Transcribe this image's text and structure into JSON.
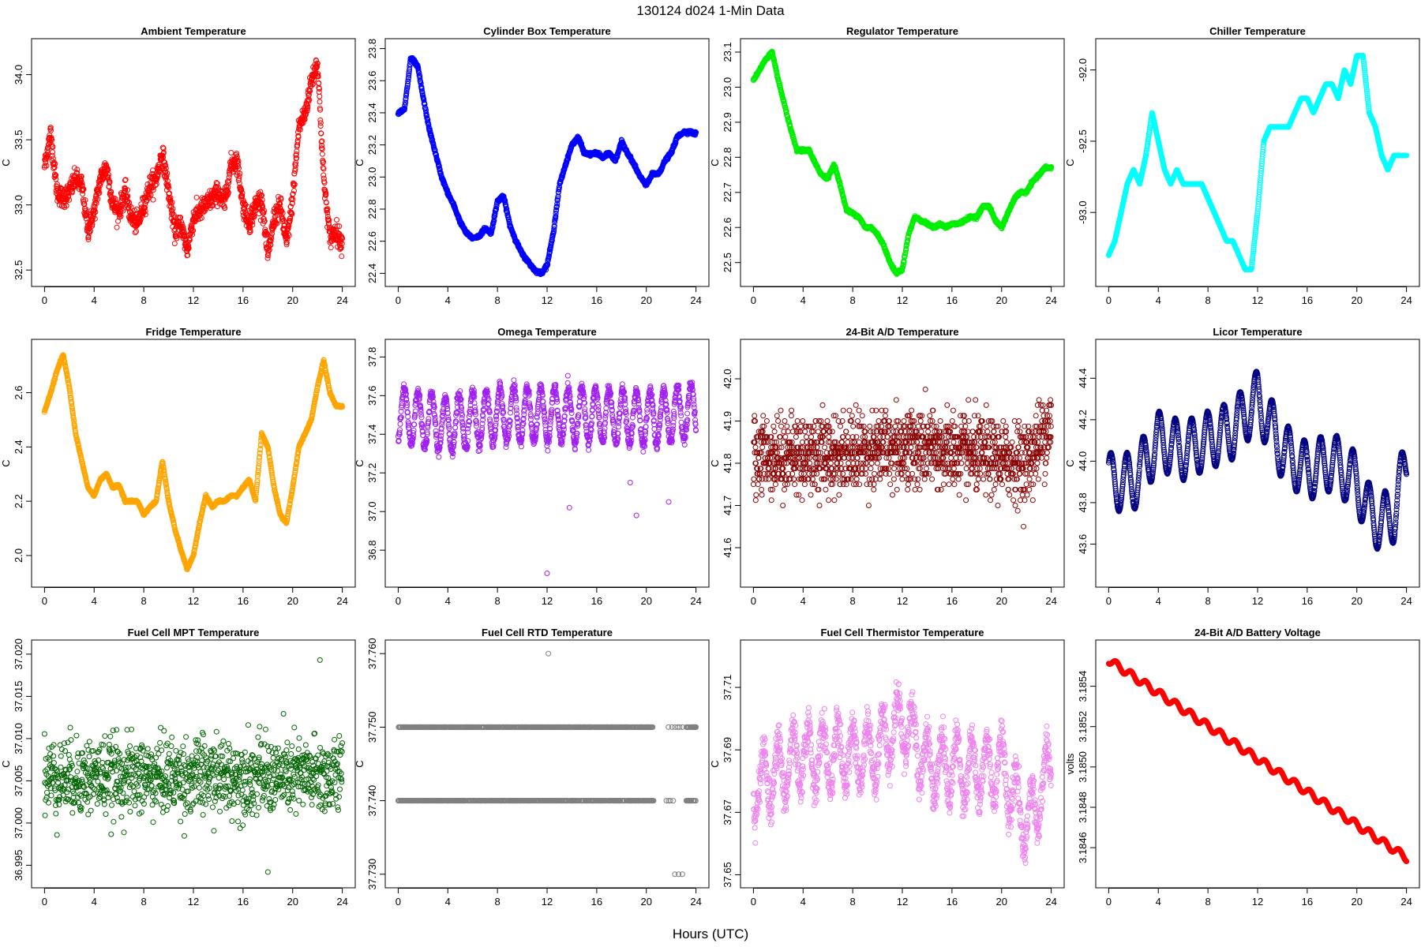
{
  "page_title": "130124    d024    1-Min Data",
  "x_axis_title": "Hours (UTC)",
  "chart_data": [
    {
      "type": "scatter",
      "title": "Ambient Temperature",
      "ylabel": "C",
      "color": "#ff0000",
      "xlim": [
        0,
        24
      ],
      "ylim": [
        32.45,
        34.2
      ],
      "xticks": [
        "0",
        "4",
        "8",
        "12",
        "16",
        "20",
        "24"
      ],
      "yticks": [
        "32.5",
        "33.0",
        "33.5",
        "34.0"
      ],
      "ytick_values": [
        32.5,
        33.0,
        33.5,
        34.0
      ],
      "noise": 0.08,
      "x": [
        0,
        0.5,
        1,
        1.5,
        2,
        2.5,
        3,
        3.5,
        4,
        4.5,
        5,
        5.5,
        6,
        6.5,
        7,
        7.5,
        8,
        8.5,
        9,
        9.5,
        10,
        10.5,
        11,
        11.5,
        12,
        12.5,
        13,
        13.5,
        14,
        14.5,
        15,
        15.5,
        16,
        16.5,
        17,
        17.5,
        18,
        18.5,
        19,
        19.5,
        20,
        20.5,
        21,
        21.5,
        22,
        22.5,
        23,
        23.5,
        24
      ],
      "y": [
        33.3,
        33.55,
        33.1,
        33.05,
        33.1,
        33.2,
        33.15,
        32.8,
        32.95,
        33.2,
        33.3,
        33.0,
        32.95,
        33.1,
        32.9,
        32.85,
        33.0,
        33.15,
        33.2,
        33.4,
        33.1,
        32.8,
        32.85,
        32.65,
        32.9,
        32.95,
        33.0,
        33.05,
        33.1,
        33.0,
        33.3,
        33.35,
        33.0,
        32.85,
        33.0,
        33.05,
        32.6,
        32.9,
        33.0,
        32.7,
        33.05,
        33.6,
        33.7,
        33.95,
        34.1,
        33.2,
        32.75,
        32.8,
        32.7
      ]
    },
    {
      "type": "scatter",
      "title": "Cylinder Box Temperature",
      "ylabel": "C",
      "color": "#0000ff",
      "xlim": [
        0,
        24
      ],
      "ylim": [
        22.38,
        23.8
      ],
      "xticks": [
        "0",
        "4",
        "8",
        "12",
        "16",
        "20",
        "24"
      ],
      "yticks": [
        "22.4",
        "22.6",
        "22.8",
        "23.0",
        "23.2",
        "23.4",
        "23.6",
        "23.8"
      ],
      "ytick_values": [
        22.4,
        22.6,
        22.8,
        23.0,
        23.2,
        23.4,
        23.6,
        23.8
      ],
      "noise": 0.01,
      "x": [
        0,
        0.5,
        0.8,
        1,
        1.3,
        1.6,
        2,
        2.5,
        3,
        3.5,
        4,
        4.5,
        5,
        5.5,
        6,
        6.5,
        7,
        7.5,
        8,
        8.5,
        9,
        9.5,
        10,
        10.5,
        11,
        11.5,
        12,
        12.5,
        13,
        13.5,
        14,
        14.5,
        15,
        15.5,
        16,
        16.5,
        17,
        17.5,
        18,
        18.5,
        19,
        19.5,
        20,
        20.5,
        21,
        21.5,
        22,
        22.5,
        23,
        23.5,
        24
      ],
      "y": [
        23.4,
        23.42,
        23.6,
        23.74,
        23.72,
        23.68,
        23.5,
        23.3,
        23.15,
        23.0,
        22.9,
        22.82,
        22.72,
        22.65,
        22.62,
        22.63,
        22.68,
        22.65,
        22.85,
        22.88,
        22.7,
        22.6,
        22.52,
        22.47,
        22.42,
        22.4,
        22.45,
        22.65,
        22.95,
        23.08,
        23.2,
        23.25,
        23.15,
        23.14,
        23.15,
        23.12,
        23.15,
        23.1,
        23.22,
        23.15,
        23.08,
        23.0,
        22.95,
        23.02,
        23.02,
        23.1,
        23.15,
        23.25,
        23.28,
        23.28,
        23.27
      ]
    },
    {
      "type": "scatter",
      "title": "Regulator Temperature",
      "ylabel": "C",
      "color": "#00ee00",
      "xlim": [
        0,
        24
      ],
      "ylim": [
        22.46,
        23.11
      ],
      "xticks": [
        "0",
        "4",
        "8",
        "12",
        "16",
        "20",
        "24"
      ],
      "yticks": [
        "22.5",
        "22.6",
        "22.7",
        "22.8",
        "22.9",
        "23.0",
        "23.1"
      ],
      "ytick_values": [
        22.5,
        22.6,
        22.7,
        22.8,
        22.9,
        23.0,
        23.1
      ],
      "noise": 0.004,
      "x": [
        0,
        0.5,
        1,
        1.5,
        2,
        2.5,
        3,
        3.5,
        4,
        4.5,
        5,
        5.5,
        6,
        6.5,
        7,
        7.5,
        8,
        8.5,
        9,
        9.5,
        10,
        10.5,
        11,
        11.5,
        12,
        12.5,
        13,
        13.5,
        14,
        14.5,
        15,
        15.5,
        16,
        16.5,
        17,
        17.5,
        18,
        18.5,
        19,
        19.5,
        20,
        20.5,
        21,
        21.5,
        22,
        22.5,
        23,
        23.5,
        24
      ],
      "y": [
        23.02,
        23.05,
        23.08,
        23.1,
        23.02,
        22.95,
        22.88,
        22.82,
        22.82,
        22.82,
        22.78,
        22.75,
        22.74,
        22.78,
        22.72,
        22.65,
        22.64,
        22.63,
        22.6,
        22.6,
        22.58,
        22.55,
        22.5,
        22.47,
        22.48,
        22.58,
        22.63,
        22.62,
        22.61,
        22.6,
        22.61,
        22.6,
        22.61,
        22.61,
        22.62,
        22.63,
        22.63,
        22.66,
        22.66,
        22.62,
        22.6,
        22.64,
        22.68,
        22.7,
        22.7,
        22.73,
        22.75,
        22.77,
        22.77
      ]
    },
    {
      "type": "scatter",
      "title": "Chiller Temperature",
      "ylabel": "C",
      "color": "#00ffff",
      "xlim": [
        0,
        24
      ],
      "ylim": [
        -93.45,
        -91.85
      ],
      "xticks": [
        "0",
        "4",
        "8",
        "12",
        "16",
        "20",
        "24"
      ],
      "yticks": [
        "-93.0",
        "-92.5",
        "-92.0"
      ],
      "ytick_values": [
        -93.0,
        -92.5,
        -92.0
      ],
      "noise": 0,
      "x": [
        0,
        0.5,
        1,
        1.5,
        2,
        2.5,
        3,
        3.5,
        4,
        4.5,
        5,
        5.5,
        6,
        6.5,
        7,
        7.5,
        8,
        8.5,
        9,
        9.5,
        10,
        10.5,
        11,
        11.5,
        12,
        12.5,
        13,
        13.5,
        14,
        14.5,
        15,
        15.5,
        16,
        16.5,
        17,
        17.5,
        18,
        18.5,
        19,
        19.5,
        20,
        20.5,
        21,
        21.5,
        22,
        22.5,
        23,
        23.5,
        24
      ],
      "y": [
        -93.3,
        -93.2,
        -93.0,
        -92.8,
        -92.7,
        -92.8,
        -92.6,
        -92.3,
        -92.5,
        -92.7,
        -92.8,
        -92.7,
        -92.8,
        -92.8,
        -92.8,
        -92.8,
        -92.9,
        -93.0,
        -93.1,
        -93.2,
        -93.2,
        -93.3,
        -93.4,
        -93.4,
        -93.0,
        -92.5,
        -92.4,
        -92.4,
        -92.4,
        -92.4,
        -92.3,
        -92.2,
        -92.2,
        -92.3,
        -92.2,
        -92.1,
        -92.1,
        -92.2,
        -92.0,
        -92.1,
        -91.9,
        -91.9,
        -92.3,
        -92.4,
        -92.6,
        -92.7,
        -92.6,
        -92.6,
        -92.6
      ]
    },
    {
      "type": "scatter",
      "title": "Fridge Temperature",
      "ylabel": "C",
      "color": "#ffa500",
      "xlim": [
        0,
        24
      ],
      "ylim": [
        1.92,
        2.76
      ],
      "xticks": [
        "0",
        "4",
        "8",
        "12",
        "16",
        "20",
        "24"
      ],
      "yticks": [
        "2.0",
        "2.2",
        "2.4",
        "2.6"
      ],
      "ytick_values": [
        2.0,
        2.2,
        2.4,
        2.6
      ],
      "noise": 0.004,
      "x": [
        0,
        0.5,
        1,
        1.5,
        2,
        2.5,
        3,
        3.5,
        4,
        4.5,
        5,
        5.5,
        6,
        6.5,
        7,
        7.5,
        8,
        8.5,
        9,
        9.5,
        10,
        10.5,
        11,
        11.5,
        12,
        12.5,
        13,
        13.5,
        14,
        14.5,
        15,
        15.5,
        16,
        16.5,
        17,
        17.5,
        18,
        18.5,
        19,
        19.5,
        20,
        20.5,
        21,
        21.5,
        22,
        22.5,
        23,
        23.5,
        24
      ],
      "y": [
        2.53,
        2.6,
        2.68,
        2.74,
        2.62,
        2.45,
        2.35,
        2.25,
        2.22,
        2.28,
        2.3,
        2.25,
        2.26,
        2.2,
        2.2,
        2.2,
        2.15,
        2.18,
        2.2,
        2.35,
        2.2,
        2.1,
        2.02,
        1.95,
        2.0,
        2.12,
        2.22,
        2.18,
        2.2,
        2.2,
        2.22,
        2.22,
        2.25,
        2.28,
        2.2,
        2.45,
        2.4,
        2.25,
        2.15,
        2.12,
        2.25,
        2.4,
        2.45,
        2.5,
        2.62,
        2.72,
        2.6,
        2.55,
        2.55
      ]
    },
    {
      "type": "scatter",
      "title": "Omega Temperature",
      "ylabel": "C",
      "color": "#a020f0",
      "xlim": [
        0,
        24
      ],
      "ylim": [
        36.66,
        37.84
      ],
      "xticks": [
        "0",
        "4",
        "8",
        "12",
        "16",
        "20",
        "24"
      ],
      "yticks": [
        "36.8",
        "37.0",
        "37.2",
        "37.4",
        "37.6",
        "37.8"
      ],
      "ytick_values": [
        36.8,
        37.0,
        37.2,
        37.4,
        37.6,
        37.8
      ],
      "noise": 0.03,
      "oscillate": {
        "amp": 0.14,
        "period": 1.1
      },
      "x": [
        0,
        4,
        8,
        12,
        16,
        20,
        24
      ],
      "y": [
        37.5,
        37.45,
        37.5,
        37.5,
        37.5,
        37.48,
        37.52
      ],
      "outliers": [
        [
          12,
          36.68
        ],
        [
          13.8,
          37.02
        ],
        [
          18.7,
          37.15
        ],
        [
          19.2,
          36.98
        ],
        [
          21.8,
          37.05
        ]
      ]
    },
    {
      "type": "scatter",
      "title": "24-Bit A/D Temperature",
      "ylabel": "C",
      "color": "#8b0000",
      "xlim": [
        0,
        24
      ],
      "ylim": [
        41.53,
        42.07
      ],
      "xticks": [
        "0",
        "4",
        "8",
        "12",
        "16",
        "20",
        "24"
      ],
      "yticks": [
        "41.6",
        "41.7",
        "41.8",
        "41.9",
        "42.0"
      ],
      "ytick_values": [
        41.6,
        41.7,
        41.8,
        41.9,
        42.0
      ],
      "noise": 0.09,
      "quantum": 0.0125,
      "x": [
        0,
        6,
        12,
        18,
        22,
        24
      ],
      "y": [
        41.82,
        41.82,
        41.84,
        41.82,
        41.8,
        41.9
      ]
    },
    {
      "type": "scatter",
      "title": "Licor Temperature",
      "ylabel": "C",
      "color": "#000080",
      "xlim": [
        0,
        24
      ],
      "ylim": [
        43.44,
        44.54
      ],
      "xticks": [
        "0",
        "4",
        "8",
        "12",
        "16",
        "20",
        "24"
      ],
      "yticks": [
        "43.6",
        "43.8",
        "44.0",
        "44.2",
        "44.4"
      ],
      "ytick_values": [
        43.6,
        43.8,
        44.0,
        44.2,
        44.4
      ],
      "noise": 0.003,
      "oscillate": {
        "amp": 0.14,
        "period": 1.3
      },
      "x": [
        0,
        2,
        4,
        6,
        8,
        10,
        12,
        14,
        16,
        18,
        20,
        21,
        22,
        23,
        24
      ],
      "y": [
        43.9,
        43.9,
        44.1,
        44.05,
        44.1,
        44.15,
        44.3,
        44.05,
        43.95,
        44.0,
        43.9,
        43.75,
        43.7,
        43.75,
        44.0
      ]
    },
    {
      "type": "scatter",
      "title": "Fuel Cell MPT Temperature",
      "ylabel": "C",
      "color": "#006400",
      "xlim": [
        0,
        24
      ],
      "ylim": [
        36.9935,
        37.0205
      ],
      "xticks": [
        "0",
        "4",
        "8",
        "12",
        "16",
        "20",
        "24"
      ],
      "yticks": [
        "36.995",
        "37.000",
        "37.005",
        "37.010",
        "37.015",
        "37.020"
      ],
      "ytick_values": [
        36.995,
        37.0,
        37.005,
        37.01,
        37.015,
        37.02
      ],
      "noise": 0.0045,
      "sparse": 1,
      "x": [
        0,
        24
      ],
      "y": [
        37.0055,
        37.0055
      ],
      "outliers": [
        [
          22.2,
          37.0193
        ],
        [
          7.8,
          37.0073
        ],
        [
          18,
          36.9942
        ],
        [
          5.8,
          37.0062
        ]
      ]
    },
    {
      "type": "scatter",
      "title": "Fuel Cell RTD Temperature",
      "ylabel": "C",
      "color": "#808080",
      "xlim": [
        0,
        24
      ],
      "ylim": [
        37.7295,
        37.7605
      ],
      "xticks": [
        "0",
        "4",
        "8",
        "12",
        "16",
        "20",
        "24"
      ],
      "yticks": [
        "37.730",
        "37.740",
        "37.750",
        "37.760"
      ],
      "ytick_values": [
        37.73,
        37.74,
        37.75,
        37.76
      ],
      "noise": 0,
      "levels": [
        37.74,
        37.75
      ],
      "x": [
        0,
        24
      ],
      "y": [
        37.74,
        37.74
      ],
      "outliers": [
        [
          12.1,
          37.76
        ],
        [
          22.3,
          37.73
        ],
        [
          22.6,
          37.73
        ],
        [
          22.9,
          37.73
        ]
      ]
    },
    {
      "type": "scatter",
      "title": "Fuel Cell Thermistor Temperature",
      "ylabel": "C",
      "color": "#ee82ee",
      "xlim": [
        0,
        24
      ],
      "ylim": [
        37.649,
        37.722
      ],
      "xticks": [
        "0",
        "4",
        "8",
        "12",
        "16",
        "20",
        "24"
      ],
      "yticks": [
        "37.65",
        "37.67",
        "37.69",
        "37.71"
      ],
      "ytick_values": [
        37.65,
        37.67,
        37.69,
        37.71
      ],
      "noise": 0.006,
      "oscillate": {
        "amp": 0.01,
        "period": 1.2
      },
      "x": [
        0,
        4,
        8,
        10,
        12,
        14,
        16,
        18,
        20,
        22,
        24
      ],
      "y": [
        37.678,
        37.688,
        37.688,
        37.69,
        37.7,
        37.685,
        37.685,
        37.683,
        37.685,
        37.665,
        37.685
      ]
    },
    {
      "type": "scatter",
      "title": "24-Bit A/D Battery Voltage",
      "ylabel": "volts",
      "color": "#ff0000",
      "xlim": [
        0,
        24
      ],
      "ylim": [
        3.18445,
        3.18558
      ],
      "xticks": [
        "0",
        "4",
        "8",
        "12",
        "16",
        "20",
        "24"
      ],
      "yticks": [
        "3.1846",
        "3.1848",
        "3.1850",
        "3.1852",
        "3.1854"
      ],
      "ytick_values": [
        3.1846,
        3.1848,
        3.185,
        3.1852,
        3.1854
      ],
      "noise": 0,
      "oscillate": {
        "amp": 1.8e-05,
        "period": 1.2
      },
      "x": [
        0,
        24
      ],
      "y": [
        3.18553,
        3.18455
      ]
    }
  ]
}
